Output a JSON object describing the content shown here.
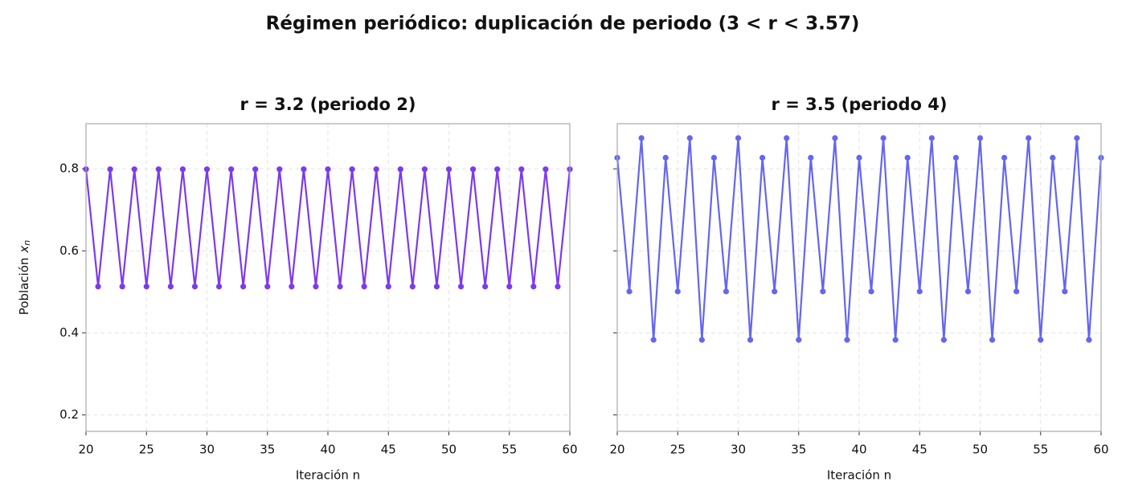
{
  "title": "Régimen periódico: duplicación de periodo (3 < r < 3.57)",
  "chart_data": [
    {
      "type": "line",
      "title": "r = 3.2  (periodo 2)",
      "xlabel": "Iteración n",
      "ylabel": {
        "text": "Población",
        "var": "x",
        "sub": "n"
      },
      "x": [
        20,
        21,
        22,
        23,
        24,
        25,
        26,
        27,
        28,
        29,
        30,
        31,
        32,
        33,
        34,
        35,
        36,
        37,
        38,
        39,
        40,
        41,
        42,
        43,
        44,
        45,
        46,
        47,
        48,
        49,
        50,
        51,
        52,
        53,
        54,
        55,
        56,
        57,
        58,
        59,
        60
      ],
      "series": [
        {
          "color": "#7c3aed",
          "values": [
            0.799,
            0.513,
            0.799,
            0.513,
            0.799,
            0.513,
            0.799,
            0.513,
            0.799,
            0.513,
            0.799,
            0.513,
            0.799,
            0.513,
            0.799,
            0.513,
            0.799,
            0.513,
            0.799,
            0.513,
            0.799,
            0.513,
            0.799,
            0.513,
            0.799,
            0.513,
            0.799,
            0.513,
            0.799,
            0.513,
            0.799,
            0.513,
            0.799,
            0.513,
            0.799,
            0.513,
            0.799,
            0.513,
            0.799,
            0.513,
            0.799
          ]
        }
      ],
      "xlim": [
        20,
        60
      ],
      "xticks": [
        20,
        25,
        30,
        35,
        40,
        45,
        50,
        55,
        60
      ],
      "ylim": [
        0.16,
        0.91
      ],
      "yticks": [
        0.2,
        0.4,
        0.6,
        0.8
      ],
      "show_ytick_labels": true,
      "grid": true
    },
    {
      "type": "line",
      "title": "r = 3.5  (periodo 4)",
      "xlabel": "Iteración n",
      "x": [
        20,
        21,
        22,
        23,
        24,
        25,
        26,
        27,
        28,
        29,
        30,
        31,
        32,
        33,
        34,
        35,
        36,
        37,
        38,
        39,
        40,
        41,
        42,
        43,
        44,
        45,
        46,
        47,
        48,
        49,
        50,
        51,
        52,
        53,
        54,
        55,
        56,
        57,
        58,
        59,
        60
      ],
      "series": [
        {
          "color": "#6366f1",
          "values": [
            0.827,
            0.501,
            0.875,
            0.383,
            0.827,
            0.501,
            0.875,
            0.383,
            0.827,
            0.501,
            0.875,
            0.383,
            0.827,
            0.501,
            0.875,
            0.383,
            0.827,
            0.501,
            0.875,
            0.383,
            0.827,
            0.501,
            0.875,
            0.383,
            0.827,
            0.501,
            0.875,
            0.383,
            0.827,
            0.501,
            0.875,
            0.383,
            0.827,
            0.501,
            0.875,
            0.383,
            0.827,
            0.501,
            0.875,
            0.383,
            0.827
          ]
        }
      ],
      "xlim": [
        20,
        60
      ],
      "xticks": [
        20,
        25,
        30,
        35,
        40,
        45,
        50,
        55,
        60
      ],
      "ylim": [
        0.16,
        0.91
      ],
      "yticks": [
        0.2,
        0.4,
        0.6,
        0.8
      ],
      "show_ytick_labels": false,
      "grid": true
    }
  ]
}
